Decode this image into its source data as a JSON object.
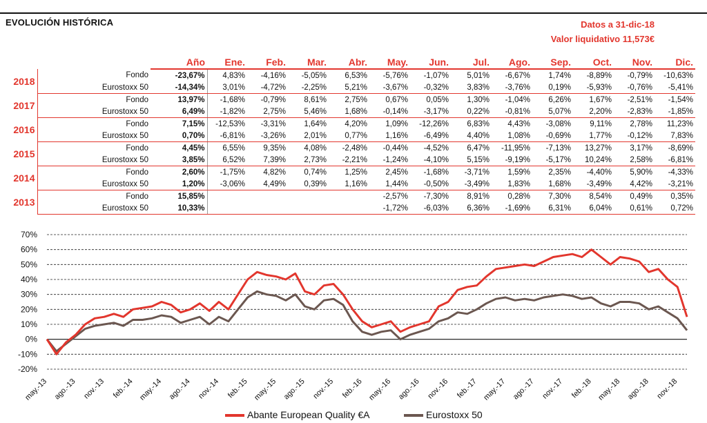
{
  "header": {
    "title": "EVOLUCIÓN HISTÓRICA",
    "date_line": "Datos a 31-dic-18",
    "nav_line": "Valor liquidativo 11,573€"
  },
  "table": {
    "columns": [
      "Año",
      "Ene.",
      "Feb.",
      "Mar.",
      "Abr.",
      "May.",
      "Jun.",
      "Jul.",
      "Ago.",
      "Sep.",
      "Oct.",
      "Nov.",
      "Dic."
    ],
    "years": [
      {
        "year": "2018",
        "rows": [
          {
            "label": "Fondo",
            "annual": "-23,67%",
            "months": [
              "4,83%",
              "-4,16%",
              "-5,05%",
              "6,53%",
              "-5,76%",
              "-1,07%",
              "5,01%",
              "-6,67%",
              "1,74%",
              "-8,89%",
              "-0,79%",
              "-10,63%"
            ]
          },
          {
            "label": "Eurostoxx 50",
            "annual": "-14,34%",
            "months": [
              "3,01%",
              "-4,72%",
              "-2,25%",
              "5,21%",
              "-3,67%",
              "-0,32%",
              "3,83%",
              "-3,76%",
              "0,19%",
              "-5,93%",
              "-0,76%",
              "-5,41%"
            ]
          }
        ]
      },
      {
        "year": "2017",
        "rows": [
          {
            "label": "Fondo",
            "annual": "13,97%",
            "months": [
              "-1,68%",
              "-0,79%",
              "8,61%",
              "2,75%",
              "0,67%",
              "0,05%",
              "1,30%",
              "-1,04%",
              "6,26%",
              "1,67%",
              "-2,51%",
              "-1,54%"
            ]
          },
          {
            "label": "Eurostoxx 50",
            "annual": "6,49%",
            "months": [
              "-1,82%",
              "2,75%",
              "5,46%",
              "1,68%",
              "-0,14%",
              "-3,17%",
              "0,22%",
              "-0,81%",
              "5,07%",
              "2,20%",
              "-2,83%",
              "-1,85%"
            ]
          }
        ]
      },
      {
        "year": "2016",
        "rows": [
          {
            "label": "Fondo",
            "annual": "7,15%",
            "months": [
              "-12,53%",
              "-3,31%",
              "1,64%",
              "4,20%",
              "1,09%",
              "-12,26%",
              "6,83%",
              "4,43%",
              "-3,08%",
              "9,11%",
              "2,78%",
              "11,23%"
            ]
          },
          {
            "label": "Eurostoxx 50",
            "annual": "0,70%",
            "months": [
              "-6,81%",
              "-3,26%",
              "2,01%",
              "0,77%",
              "1,16%",
              "-6,49%",
              "4,40%",
              "1,08%",
              "-0,69%",
              "1,77%",
              "-0,12%",
              "7,83%"
            ]
          }
        ]
      },
      {
        "year": "2015",
        "rows": [
          {
            "label": "Fondo",
            "annual": "4,45%",
            "months": [
              "6,55%",
              "9,35%",
              "4,08%",
              "-2,48%",
              "-0,44%",
              "-4,52%",
              "6,47%",
              "-11,95%",
              "-7,13%",
              "13,27%",
              "3,17%",
              "-8,69%"
            ]
          },
          {
            "label": "Eurostoxx 50",
            "annual": "3,85%",
            "months": [
              "6,52%",
              "7,39%",
              "2,73%",
              "-2,21%",
              "-1,24%",
              "-4,10%",
              "5,15%",
              "-9,19%",
              "-5,17%",
              "10,24%",
              "2,58%",
              "-6,81%"
            ]
          }
        ]
      },
      {
        "year": "2014",
        "rows": [
          {
            "label": "Fondo",
            "annual": "2,60%",
            "months": [
              "-1,75%",
              "4,82%",
              "0,74%",
              "1,25%",
              "2,45%",
              "-1,68%",
              "-3,71%",
              "1,59%",
              "2,35%",
              "-4,40%",
              "5,90%",
              "-4,33%"
            ]
          },
          {
            "label": "Eurostoxx 50",
            "annual": "1,20%",
            "months": [
              "-3,06%",
              "4,49%",
              "0,39%",
              "1,16%",
              "1,44%",
              "-0,50%",
              "-3,49%",
              "1,83%",
              "1,68%",
              "-3,49%",
              "4,42%",
              "-3,21%"
            ]
          }
        ]
      },
      {
        "year": "2013",
        "rows": [
          {
            "label": "Fondo",
            "annual": "15,85%",
            "months": [
              "",
              "",
              "",
              "",
              "-2,57%",
              "-7,30%",
              "8,91%",
              "0,28%",
              "7,30%",
              "8,54%",
              "0,49%",
              "0,35%"
            ]
          },
          {
            "label": "Eurostoxx 50",
            "annual": "10,33%",
            "months": [
              "",
              "",
              "",
              "",
              "-1,72%",
              "-6,03%",
              "6,36%",
              "-1,69%",
              "6,31%",
              "6,04%",
              "0,61%",
              "0,72%"
            ]
          }
        ]
      }
    ]
  },
  "chart_data": {
    "type": "line",
    "ylim": [
      -20,
      70
    ],
    "yticks": [
      -20,
      -10,
      0,
      10,
      20,
      30,
      40,
      50,
      60,
      70
    ],
    "ytick_labels": [
      "-20%",
      "-10%",
      "0%",
      "10%",
      "20%",
      "30%",
      "40%",
      "50%",
      "60%",
      "70%"
    ],
    "x_tick_labels": [
      "may.-13",
      "ago.-13",
      "nov.-13",
      "feb.-14",
      "may.-14",
      "ago.-14",
      "nov.-14",
      "feb.-15",
      "may.-15",
      "ago.-15",
      "nov.-15",
      "feb.-16",
      "may.-16",
      "ago.-16",
      "nov.-16",
      "feb.-17",
      "may.-17",
      "ago.-17",
      "nov.-17",
      "feb.-18",
      "may.-18",
      "ago.-18",
      "nov.-18"
    ],
    "x_months": [
      "2013-05",
      "2013-06",
      "2013-07",
      "2013-08",
      "2013-09",
      "2013-10",
      "2013-11",
      "2013-12",
      "2014-01",
      "2014-02",
      "2014-03",
      "2014-04",
      "2014-05",
      "2014-06",
      "2014-07",
      "2014-08",
      "2014-09",
      "2014-10",
      "2014-11",
      "2014-12",
      "2015-01",
      "2015-02",
      "2015-03",
      "2015-04",
      "2015-05",
      "2015-06",
      "2015-07",
      "2015-08",
      "2015-09",
      "2015-10",
      "2015-11",
      "2015-12",
      "2016-01",
      "2016-02",
      "2016-03",
      "2016-04",
      "2016-05",
      "2016-06",
      "2016-07",
      "2016-08",
      "2016-09",
      "2016-10",
      "2016-11",
      "2016-12",
      "2017-01",
      "2017-02",
      "2017-03",
      "2017-04",
      "2017-05",
      "2017-06",
      "2017-07",
      "2017-08",
      "2017-09",
      "2017-10",
      "2017-11",
      "2017-12",
      "2018-01",
      "2018-02",
      "2018-03",
      "2018-04",
      "2018-05",
      "2018-06",
      "2018-07",
      "2018-08",
      "2018-09",
      "2018-10",
      "2018-11",
      "2018-12"
    ],
    "series": [
      {
        "name": "Abante European Quality €A",
        "color": "#e2362d",
        "values": [
          0,
          -10,
          -2,
          3,
          10,
          14,
          15,
          17,
          15,
          20,
          21,
          22,
          25,
          23,
          18,
          20,
          24,
          19,
          25,
          20,
          30,
          40,
          45,
          43,
          42,
          40,
          44,
          32,
          30,
          36,
          37,
          30,
          20,
          12,
          8,
          10,
          12,
          5,
          8,
          10,
          12,
          22,
          25,
          33,
          35,
          36,
          42,
          47,
          48,
          49,
          50,
          49,
          52,
          55,
          56,
          57,
          55,
          60,
          55,
          50,
          55,
          54,
          52,
          45,
          47,
          40,
          35,
          15
        ]
      },
      {
        "name": "Eurostoxx 50",
        "color": "#6b5750",
        "values": [
          0,
          -8,
          -3,
          2,
          7,
          9,
          10,
          11,
          9,
          13,
          13,
          14,
          16,
          15,
          11,
          13,
          15,
          10,
          15,
          12,
          20,
          28,
          32,
          30,
          29,
          26,
          30,
          22,
          20,
          26,
          27,
          23,
          12,
          5,
          3,
          5,
          6,
          0,
          3,
          5,
          7,
          12,
          14,
          18,
          17,
          20,
          24,
          27,
          28,
          26,
          27,
          26,
          28,
          29,
          30,
          29,
          27,
          28,
          24,
          22,
          25,
          25,
          24,
          20,
          22,
          18,
          14,
          6
        ]
      }
    ]
  },
  "legend": {
    "items": [
      "Abante European Quality €A",
      "Eurostoxx 50"
    ]
  }
}
